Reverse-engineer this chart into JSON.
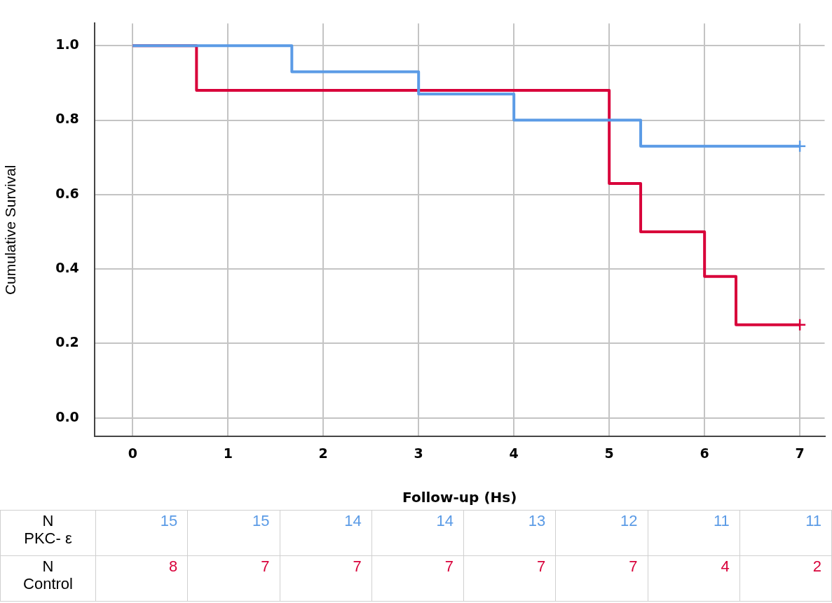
{
  "chart_data": {
    "type": "step",
    "xlabel": "Follow-up (Hs)",
    "ylabel": "Cumulative Survival",
    "xlim": [
      -0.4,
      7.26
    ],
    "xticks": [
      0,
      1,
      2,
      3,
      4,
      5,
      6,
      7
    ],
    "ylim": [
      -0.05,
      1.06
    ],
    "yticks": [
      {
        "value": 0,
        "label": "0.0"
      },
      {
        "value": 0.2,
        "label": "0.2"
      },
      {
        "value": 0.4,
        "label": "0.4"
      },
      {
        "value": 0.6,
        "label": "0.6"
      },
      {
        "value": 0.8,
        "label": "0.8"
      },
      {
        "value": 1,
        "label": "1.0"
      }
    ],
    "grid": true,
    "legend": false,
    "series": [
      {
        "color": "#5b9be6",
        "x": [
          0,
          1.67,
          3,
          4,
          5.33,
          7
        ],
        "values": [
          1,
          0.93,
          0.87,
          0.8,
          0.73,
          0.73
        ]
      },
      {
        "color": "#d8003a",
        "x": [
          0,
          0.67,
          5,
          5.33,
          6,
          6.33,
          7
        ],
        "values": [
          1,
          0.88,
          0.63,
          0.5,
          0.38,
          0.25,
          0.25
        ]
      },
      {
        "type": "scatter",
        "marker": "cross",
        "color": "#5b9be6",
        "x": [
          7
        ],
        "values": [
          0.73
        ]
      },
      {
        "type": "scatter",
        "marker": "cross",
        "color": "#d8003a",
        "x": [
          7
        ],
        "values": [
          0.25
        ]
      }
    ],
    "annotations": [
      "N\nPKC- ε",
      "15",
      "15",
      "14",
      "14",
      "13",
      "12",
      "11",
      "11",
      "N\nControl",
      "8",
      "7",
      "7",
      "7",
      "7",
      "7",
      "4",
      "2"
    ]
  }
}
